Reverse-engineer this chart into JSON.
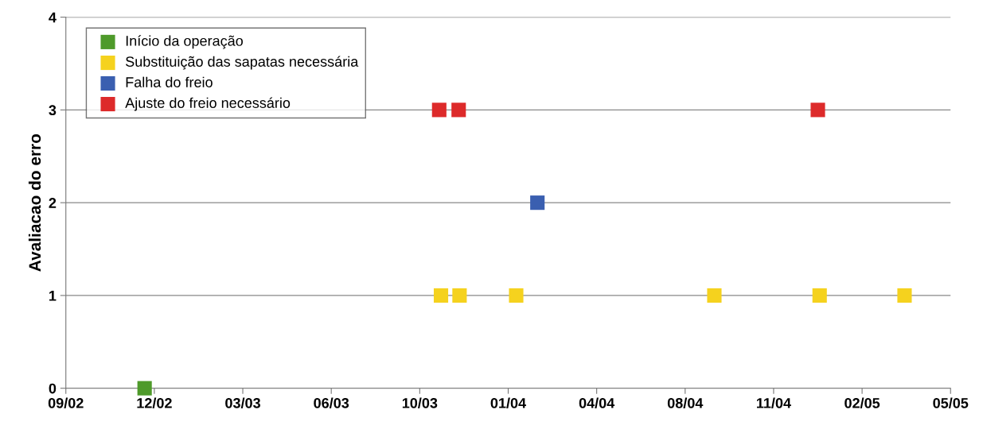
{
  "chart_data": {
    "type": "scatter",
    "ylabel": "Avaliacao do erro",
    "series": [
      {
        "name": "Início da operação",
        "color": "#4e9a2a",
        "x": [
          "2002-11-29"
        ],
        "values": [
          0
        ]
      },
      {
        "name": "Substituição das sapatas necessária",
        "color": "#f5d21e",
        "x": [
          "2003-10-30",
          "2003-11-20",
          "2004-01-23",
          "2004-09-03",
          "2004-12-31",
          "2005-04-06"
        ],
        "values": [
          1,
          1,
          1,
          1,
          1,
          1
        ]
      },
      {
        "name": "Falha do freio",
        "color": "#3a5fb0",
        "x": [
          "2004-02-16"
        ],
        "values": [
          2
        ]
      },
      {
        "name": "Ajuste do freio necessário",
        "color": "#dd2a2a",
        "x": [
          "2003-10-28",
          "2003-11-19",
          "2004-12-29"
        ],
        "values": [
          3,
          3,
          3
        ]
      }
    ],
    "xlim": [
      "2002-09-01",
      "2005-05-28"
    ],
    "xticks": [
      {
        "value": "2002-09-01",
        "label": "09/02"
      },
      {
        "value": "2002-12-10",
        "label": "12/02"
      },
      {
        "value": "2003-03-20",
        "label": "03/03"
      },
      {
        "value": "2003-06-28",
        "label": "06/03"
      },
      {
        "value": "2003-10-06",
        "label": "10/03"
      },
      {
        "value": "2004-01-14",
        "label": "01/04"
      },
      {
        "value": "2004-04-23",
        "label": "04/04"
      },
      {
        "value": "2004-08-01",
        "label": "08/04"
      },
      {
        "value": "2004-11-09",
        "label": "11/04"
      },
      {
        "value": "2005-02-17",
        "label": "02/05"
      },
      {
        "value": "2005-05-28",
        "label": "05/05"
      }
    ],
    "ylim": [
      0,
      4
    ],
    "yticks": [
      0,
      1,
      2,
      3,
      4
    ],
    "grid": "y",
    "legend": "top left",
    "marker": "square"
  }
}
